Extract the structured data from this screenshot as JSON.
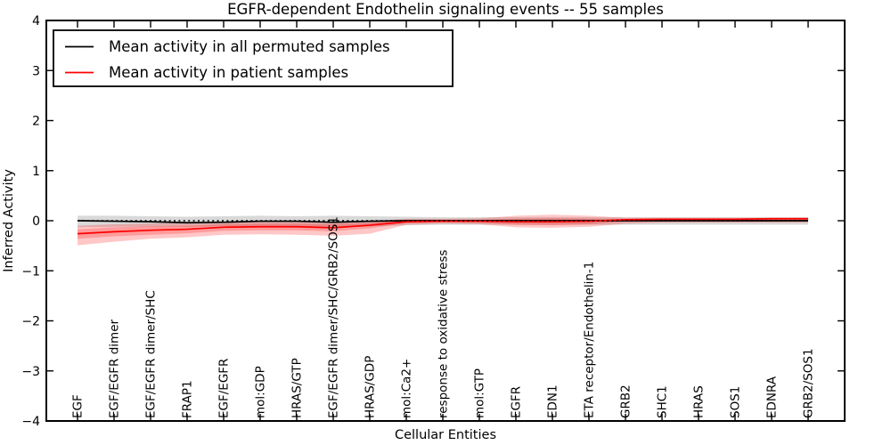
{
  "title": "EGFR-dependent Endothelin signaling events -- 55 samples",
  "legend": {
    "entries": [
      {
        "label": "Mean activity in all permuted samples",
        "color": "#000000"
      },
      {
        "label": "Mean activity in patient samples",
        "color": "#ff0000"
      }
    ]
  },
  "chart_data": {
    "type": "line",
    "title": "EGFR-dependent Endothelin signaling events -- 55 samples",
    "xlabel": "Cellular Entities",
    "ylabel": "Inferred Activity",
    "ylim": [
      -4,
      4
    ],
    "yticks": [
      -4,
      -3,
      -2,
      -1,
      0,
      1,
      2,
      3,
      4
    ],
    "grid": false,
    "legend_position": "upper left",
    "categories": [
      "EGF",
      "EGF/EGFR dimer",
      "EGF/EGFR dimer/SHC",
      "FRAP1",
      "EGF/EGFR",
      "mol:GDP",
      "HRAS/GTP",
      "EGF/EGFR dimer/SHC/GRB2/SOS1",
      "HRAS/GDP",
      "mol:Ca2+",
      "response to oxidative stress",
      "mol:GTP",
      "EGFR",
      "EDN1",
      "ETA receptor/Endothelin-1",
      "GRB2",
      "SHC1",
      "HRAS",
      "SOS1",
      "EDNRA",
      "GRB2/SOS1"
    ],
    "series": [
      {
        "name": "Mean activity in all permuted samples",
        "color": "#000000",
        "values": [
          0.0,
          -0.01,
          -0.02,
          -0.04,
          -0.03,
          -0.01,
          -0.01,
          -0.03,
          -0.01,
          0.0,
          0.0,
          0.0,
          0.0,
          0.0,
          0.0,
          0.0,
          0.0,
          0.0,
          0.0,
          0.0,
          0.0
        ]
      },
      {
        "name": "Mean activity in patient samples",
        "color": "#ff0000",
        "values": [
          -0.26,
          -0.22,
          -0.19,
          -0.17,
          -0.13,
          -0.12,
          -0.12,
          -0.14,
          -0.09,
          -0.02,
          -0.01,
          -0.01,
          -0.02,
          -0.02,
          -0.01,
          0.02,
          0.03,
          0.03,
          0.03,
          0.04,
          0.04
        ]
      }
    ],
    "bands": [
      {
        "name": "permuted-samples-band",
        "color": "#808080",
        "opacity": 0.3,
        "upper": [
          0.1,
          0.1,
          0.09,
          0.08,
          0.09,
          0.1,
          0.09,
          0.1,
          0.09,
          0.08,
          0.07,
          0.07,
          0.07,
          0.07,
          0.07,
          0.07,
          0.07,
          0.07,
          0.07,
          0.07,
          0.07
        ],
        "lower": [
          -0.13,
          -0.12,
          -0.12,
          -0.12,
          -0.11,
          -0.11,
          -0.11,
          -0.12,
          -0.11,
          -0.09,
          -0.08,
          -0.08,
          -0.08,
          -0.08,
          -0.08,
          -0.08,
          -0.08,
          -0.08,
          -0.08,
          -0.08,
          -0.08
        ]
      },
      {
        "name": "patient-samples-outer-band",
        "color": "#ff0000",
        "opacity": 0.22,
        "upper": [
          -0.1,
          -0.07,
          -0.05,
          -0.05,
          -0.03,
          -0.02,
          -0.02,
          -0.02,
          -0.01,
          0.04,
          0.04,
          0.05,
          0.1,
          0.12,
          0.1,
          0.06,
          0.06,
          0.06,
          0.06,
          0.06,
          0.06
        ],
        "lower": [
          -0.49,
          -0.42,
          -0.36,
          -0.33,
          -0.28,
          -0.27,
          -0.28,
          -0.3,
          -0.26,
          -0.08,
          -0.06,
          -0.07,
          -0.13,
          -0.14,
          -0.12,
          -0.06,
          -0.04,
          -0.04,
          -0.04,
          -0.04,
          -0.04
        ]
      },
      {
        "name": "patient-samples-inner-band",
        "color": "#ff0000",
        "opacity": 0.22,
        "upper": [
          -0.17,
          -0.13,
          -0.11,
          -0.1,
          -0.07,
          -0.06,
          -0.06,
          -0.07,
          -0.04,
          0.01,
          0.01,
          0.02,
          0.04,
          0.05,
          0.04,
          0.04,
          0.04,
          0.04,
          0.04,
          0.05,
          0.05
        ],
        "lower": [
          -0.36,
          -0.31,
          -0.28,
          -0.25,
          -0.2,
          -0.19,
          -0.19,
          -0.21,
          -0.15,
          -0.05,
          -0.03,
          -0.04,
          -0.08,
          -0.09,
          -0.07,
          -0.01,
          0.0,
          0.0,
          0.0,
          0.01,
          0.01
        ]
      }
    ],
    "zero_line": {
      "y": 0,
      "color": "#000000",
      "style": "dotted"
    }
  }
}
